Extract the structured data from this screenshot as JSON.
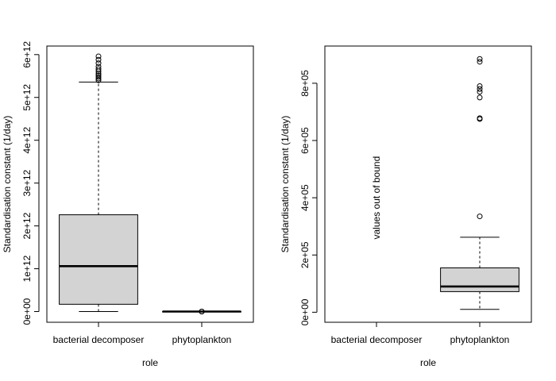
{
  "chart_data": [
    {
      "type": "box",
      "xlabel": "role",
      "ylabel": "Standardisation constant (1/day)",
      "ylim": [
        -250000000000,
        6200000000000
      ],
      "yticks": [
        {
          "value": 0,
          "label": "0e+00"
        },
        {
          "value": 1000000000000,
          "label": "1e+12"
        },
        {
          "value": 2000000000000,
          "label": "2e+12"
        },
        {
          "value": 3000000000000,
          "label": "3e+12"
        },
        {
          "value": 4000000000000,
          "label": "4e+12"
        },
        {
          "value": 5000000000000,
          "label": "5e+12"
        },
        {
          "value": 6000000000000,
          "label": "6e+12"
        }
      ],
      "categories": [
        "bacterial decomposer",
        "phytoplankton"
      ],
      "boxes": [
        {
          "category": "bacterial decomposer",
          "whisker_low": 0,
          "q1": 170000000000,
          "median": 1060000000000,
          "q3": 2260000000000,
          "whisker_high": 5360000000000,
          "outliers": [
            5400000000000,
            5440000000000,
            5480000000000,
            5520000000000,
            5560000000000,
            5610000000000,
            5660000000000,
            5720000000000,
            5800000000000,
            5880000000000,
            5960000000000
          ]
        },
        {
          "category": "phytoplankton",
          "whisker_low": 0,
          "q1": 0,
          "median": 0,
          "q3": 0,
          "whisker_high": 0,
          "outliers": [
            0,
            0,
            0
          ]
        }
      ],
      "annotation": ""
    },
    {
      "type": "box",
      "xlabel": "role",
      "ylabel": "Standardisation constant (1/day)",
      "ylim": [
        -35000,
        930000
      ],
      "yticks": [
        {
          "value": 0,
          "label": "0e+00"
        },
        {
          "value": 200000,
          "label": "2e+05"
        },
        {
          "value": 400000,
          "label": "4e+05"
        },
        {
          "value": 600000,
          "label": "6e+05"
        },
        {
          "value": 800000,
          "label": "8e+05"
        }
      ],
      "categories": [
        "bacterial decomposer",
        "phytoplankton"
      ],
      "boxes": [
        {
          "category": "bacterial decomposer",
          "empty": true
        },
        {
          "category": "phytoplankton",
          "whisker_low": 10000,
          "q1": 72000,
          "median": 90000,
          "q3": 155000,
          "whisker_high": 262000,
          "outliers": [
            335000,
            675000,
            678000,
            750000,
            770000,
            780000,
            790000,
            875000,
            885000
          ]
        }
      ],
      "annotation": "values out of bound",
      "annotation_category": "bacterial decomposer",
      "annotation_value": 400000
    }
  ]
}
